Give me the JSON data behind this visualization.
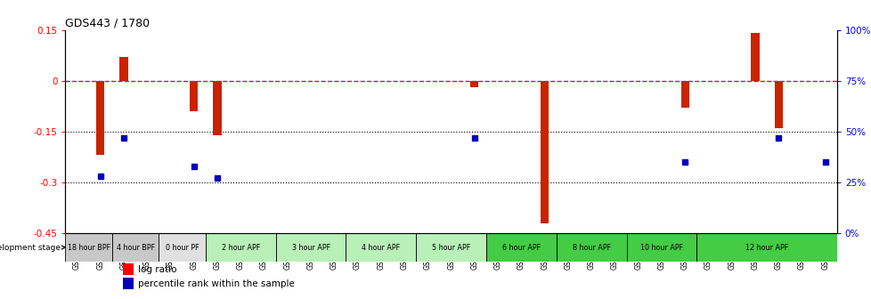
{
  "title": "GDS443 / 1780",
  "samples": [
    "GSM4585",
    "GSM4586",
    "GSM4587",
    "GSM4588",
    "GSM4589",
    "GSM4590",
    "GSM4591",
    "GSM4592",
    "GSM4593",
    "GSM4594",
    "GSM4595",
    "GSM4596",
    "GSM4597",
    "GSM4598",
    "GSM4599",
    "GSM4600",
    "GSM4601",
    "GSM4602",
    "GSM4603",
    "GSM4604",
    "GSM4605",
    "GSM4606",
    "GSM4607",
    "GSM4608",
    "GSM4609",
    "GSM4610",
    "GSM4611",
    "GSM4612",
    "GSM4613",
    "GSM4614",
    "GSM4615",
    "GSM4616",
    "GSM4617"
  ],
  "log_ratio": [
    0.0,
    -0.22,
    0.07,
    0.0,
    0.0,
    -0.09,
    -0.16,
    0.0,
    0.0,
    0.0,
    0.0,
    0.0,
    0.0,
    0.0,
    0.0,
    0.0,
    0.0,
    -0.02,
    0.0,
    0.0,
    -0.42,
    0.0,
    0.0,
    0.0,
    0.0,
    0.0,
    -0.08,
    0.0,
    0.0,
    0.14,
    -0.14,
    0.0,
    0.0
  ],
  "percentile_rank": [
    null,
    28,
    47,
    null,
    null,
    33,
    27,
    null,
    null,
    null,
    null,
    null,
    null,
    null,
    null,
    null,
    null,
    47,
    null,
    null,
    null,
    null,
    null,
    null,
    null,
    null,
    35,
    null,
    null,
    null,
    47,
    null,
    35
  ],
  "stage_groups": [
    {
      "label": "18 hour BPF",
      "start": 0,
      "end": 2,
      "color": "#c8c8c8"
    },
    {
      "label": "4 hour BPF",
      "start": 2,
      "end": 4,
      "color": "#c8c8c8"
    },
    {
      "label": "0 hour PF",
      "start": 4,
      "end": 6,
      "color": "#e0e0e0"
    },
    {
      "label": "2 hour APF",
      "start": 6,
      "end": 9,
      "color": "#b8f0b8"
    },
    {
      "label": "3 hour APF",
      "start": 9,
      "end": 12,
      "color": "#b8f0b8"
    },
    {
      "label": "4 hour APF",
      "start": 12,
      "end": 15,
      "color": "#b8f0b8"
    },
    {
      "label": "5 hour APF",
      "start": 15,
      "end": 18,
      "color": "#b8f0b8"
    },
    {
      "label": "6 hour APF",
      "start": 18,
      "end": 21,
      "color": "#44cc44"
    },
    {
      "label": "8 hour APF",
      "start": 21,
      "end": 24,
      "color": "#44cc44"
    },
    {
      "label": "10 hour APF",
      "start": 24,
      "end": 27,
      "color": "#44cc44"
    },
    {
      "label": "12 hour APF",
      "start": 27,
      "end": 33,
      "color": "#44cc44"
    }
  ],
  "ylim_left": [
    -0.45,
    0.15
  ],
  "ylim_right": [
    0,
    100
  ],
  "yticks_left": [
    0.15,
    0,
    -0.15,
    -0.3,
    -0.45
  ],
  "ytick_labels_left": [
    "0.15",
    "0",
    "-0.15",
    "-0.3",
    "-0.45"
  ],
  "yticks_right": [
    100,
    75,
    50,
    25,
    0
  ],
  "ytick_labels_right": [
    "100%",
    "75%",
    "50%",
    "25%",
    "0%"
  ],
  "bar_color": "#cc2200",
  "dot_color": "#0000bb",
  "hline_color": "#cc2200",
  "fig_width": 9.79,
  "fig_height": 3.36,
  "background_color": "#ffffff"
}
